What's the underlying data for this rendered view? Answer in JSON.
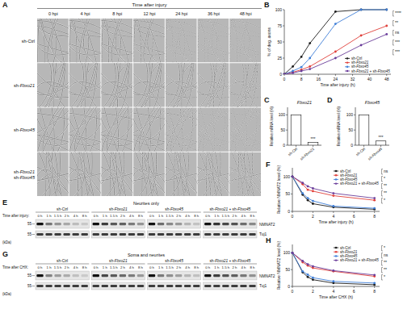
{
  "chart_data": [
    {
      "panel": "B",
      "type": "line",
      "x_label": "Time after injury (h)",
      "y_label": "% of deg. axons",
      "x": [
        0,
        4,
        8,
        12,
        24,
        36,
        48
      ],
      "xlim": [
        0,
        50
      ],
      "xticks": [
        0,
        8,
        16,
        24,
        32,
        40,
        48
      ],
      "ylim": [
        0,
        100
      ],
      "yticks": [
        0,
        25,
        50,
        75,
        100
      ],
      "marker": "circle",
      "legend": "lower right",
      "series": [
        {
          "name": "sh-Ctrl",
          "color": "#1a1a1a",
          "values": [
            0,
            12,
            27,
            48,
            97,
            100,
            100
          ]
        },
        {
          "name": "sh-Fbxo21",
          "color": "#e0403a",
          "values": [
            0,
            3,
            7,
            12,
            35,
            60,
            75
          ]
        },
        {
          "name": "sh-Fbxo45",
          "color": "#3f7fd8",
          "values": [
            0,
            5,
            11,
            25,
            78,
            100,
            100
          ]
        },
        {
          "name": "sh-Fbxo21 + sh-Fbxo45",
          "color": "#6a3d9a",
          "values": [
            0,
            2,
            5,
            8,
            25,
            45,
            62
          ]
        }
      ],
      "annotations": [
        "****",
        "**",
        "ns",
        "***",
        "***"
      ]
    },
    {
      "panel": "C",
      "type": "bar",
      "title": "Fbxo21",
      "y_label": "Relative mRNA level (%)",
      "categories": [
        "sh-Ctrl",
        "sh-Fbxo21"
      ],
      "values": [
        100,
        9
      ],
      "color": "#ffffff",
      "ylim": [
        0,
        125
      ],
      "yticks": [
        0,
        50,
        100
      ],
      "annotations": [
        "***"
      ]
    },
    {
      "panel": "D",
      "type": "bar",
      "title": "Fbxo45",
      "y_label": "Relative mRNA level (%)",
      "categories": [
        "sh-Ctrl",
        "sh-Fbxo45"
      ],
      "values": [
        100,
        14
      ],
      "color": "#ffffff",
      "ylim": [
        0,
        125
      ],
      "yticks": [
        0,
        50,
        100
      ],
      "annotations": [
        "***"
      ]
    },
    {
      "panel": "F",
      "type": "line",
      "x_label": "Time after injury (h)",
      "y_label": "Relative NMNAT2 level (%)",
      "x": [
        0,
        1,
        1.5,
        2,
        4,
        8
      ],
      "xlim": [
        0,
        8.5
      ],
      "xticks": [
        0,
        2,
        4,
        6,
        8
      ],
      "ylim": [
        0,
        125
      ],
      "yticks": [
        0,
        50,
        100
      ],
      "marker": "circle",
      "legend": "upper right",
      "series": [
        {
          "name": "sh-Ctrl",
          "color": "#1a1a1a",
          "values": [
            100,
            48,
            32,
            22,
            12,
            6
          ]
        },
        {
          "name": "sh-Fbxo21",
          "color": "#e0403a",
          "values": [
            100,
            78,
            62,
            58,
            45,
            32
          ]
        },
        {
          "name": "sh-Fbxo45",
          "color": "#3f7fd8",
          "values": [
            100,
            52,
            38,
            30,
            15,
            9
          ]
        },
        {
          "name": "sh-Fbxo21 + sh-Fbxo45",
          "color": "#6a3d9a",
          "values": [
            100,
            82,
            72,
            66,
            52,
            38
          ]
        }
      ],
      "annotations": [
        "ns",
        "*",
        "**",
        "**",
        "*"
      ]
    },
    {
      "panel": "H",
      "type": "line",
      "x_label": "Time after CHX (h)",
      "y_label": "Relative NMNAT2 level (%)",
      "x": [
        0,
        1,
        1.5,
        2,
        4,
        8
      ],
      "xlim": [
        0,
        8.5
      ],
      "xticks": [
        0,
        2,
        4,
        6,
        8
      ],
      "ylim": [
        0,
        125
      ],
      "yticks": [
        0,
        50,
        100
      ],
      "marker": "circle",
      "legend": "upper right",
      "series": [
        {
          "name": "sh-Ctrl",
          "color": "#1a1a1a",
          "values": [
            100,
            42,
            28,
            20,
            10,
            5
          ]
        },
        {
          "name": "sh-Fbxo21",
          "color": "#e0403a",
          "values": [
            100,
            72,
            62,
            55,
            45,
            30
          ]
        },
        {
          "name": "sh-Fbxo45",
          "color": "#3f7fd8",
          "values": [
            100,
            45,
            35,
            26,
            15,
            10
          ]
        },
        {
          "name": "sh-Fbxo21 + sh-Fbxo45",
          "color": "#6a3d9a",
          "values": [
            100,
            76,
            66,
            60,
            47,
            34
          ]
        }
      ],
      "annotations": [
        "*",
        "ns",
        "**",
        "**",
        "*"
      ]
    }
  ],
  "figure": {
    "panel_a": {
      "panel": "A",
      "header": "Time after injury",
      "columns": [
        "0 hpi",
        "4 hpi",
        "8 hpi",
        "12 hpi",
        "24 hpi",
        "36 hpi",
        "48 hpi"
      ],
      "rows": [
        [
          "sh-Ctrl"
        ],
        [
          "sh-Fbxo21"
        ],
        [
          "sh-Fbxo45"
        ],
        [
          "sh-Fbxo21",
          "sh-Fbxo45"
        ]
      ]
    },
    "panel_e": {
      "panel": "E",
      "title": "Neurites only",
      "time_label": "Time after injury:",
      "groups": [
        "sh-Ctrl",
        "sh-Fbxo21",
        "sh-Fbxo45",
        "sh-Fbxo21 + sh-Fbxo45"
      ],
      "lanes": [
        "0 h",
        "1 h",
        "1.5 h",
        "2 h",
        "4 h",
        "8 h"
      ],
      "bands": [
        "NMNAT2",
        "Tuj1"
      ],
      "mw": [
        "55",
        "55"
      ],
      "mw_unit": "(kDa)"
    },
    "panel_g": {
      "panel": "G",
      "title": "Soma and neurites",
      "time_label": "Time after CHX:",
      "groups": [
        "sh-Ctrl",
        "sh-Fbxo21",
        "sh-Fbxo45",
        "sh-Fbxo21 + sh-Fbxo45"
      ],
      "lanes": [
        "0 h",
        "1 h",
        "1.5 h",
        "2 h",
        "4 h",
        "8 h"
      ],
      "bands": [
        "NMNAT2",
        "Tuj1"
      ],
      "mw": [
        "55",
        "55"
      ],
      "mw_unit": "(kDa)"
    }
  }
}
